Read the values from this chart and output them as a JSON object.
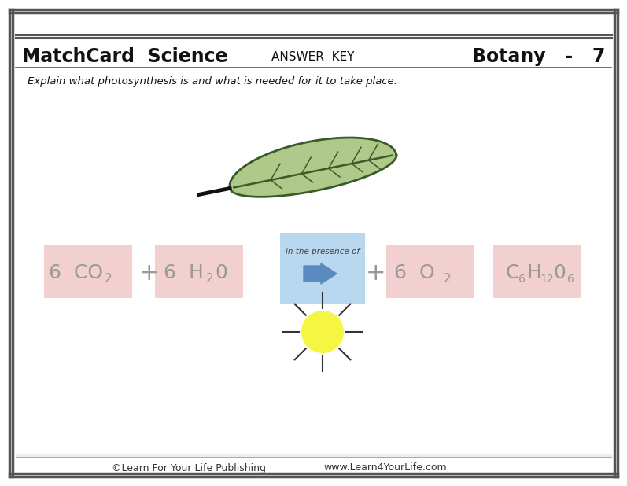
{
  "title_left": "MatchCard  Science",
  "title_center": "ANSWER  KEY",
  "title_right": "Botany   -   7",
  "subtitle": "Explain what photosynthesis is and what is needed for it to take place.",
  "bg_color": "#ffffff",
  "box_pink": "#f2d0d0",
  "box_blue": "#b8d8f0",
  "footer_left": "©Learn For Your Life Publishing",
  "footer_right": "www.Learn4YourLife.com",
  "leaf_fill": "#aec98a",
  "leaf_outline": "#3a5a2a",
  "sun_color": "#f5f542",
  "arrow_color": "#5a8abf",
  "text_color": "#999999"
}
